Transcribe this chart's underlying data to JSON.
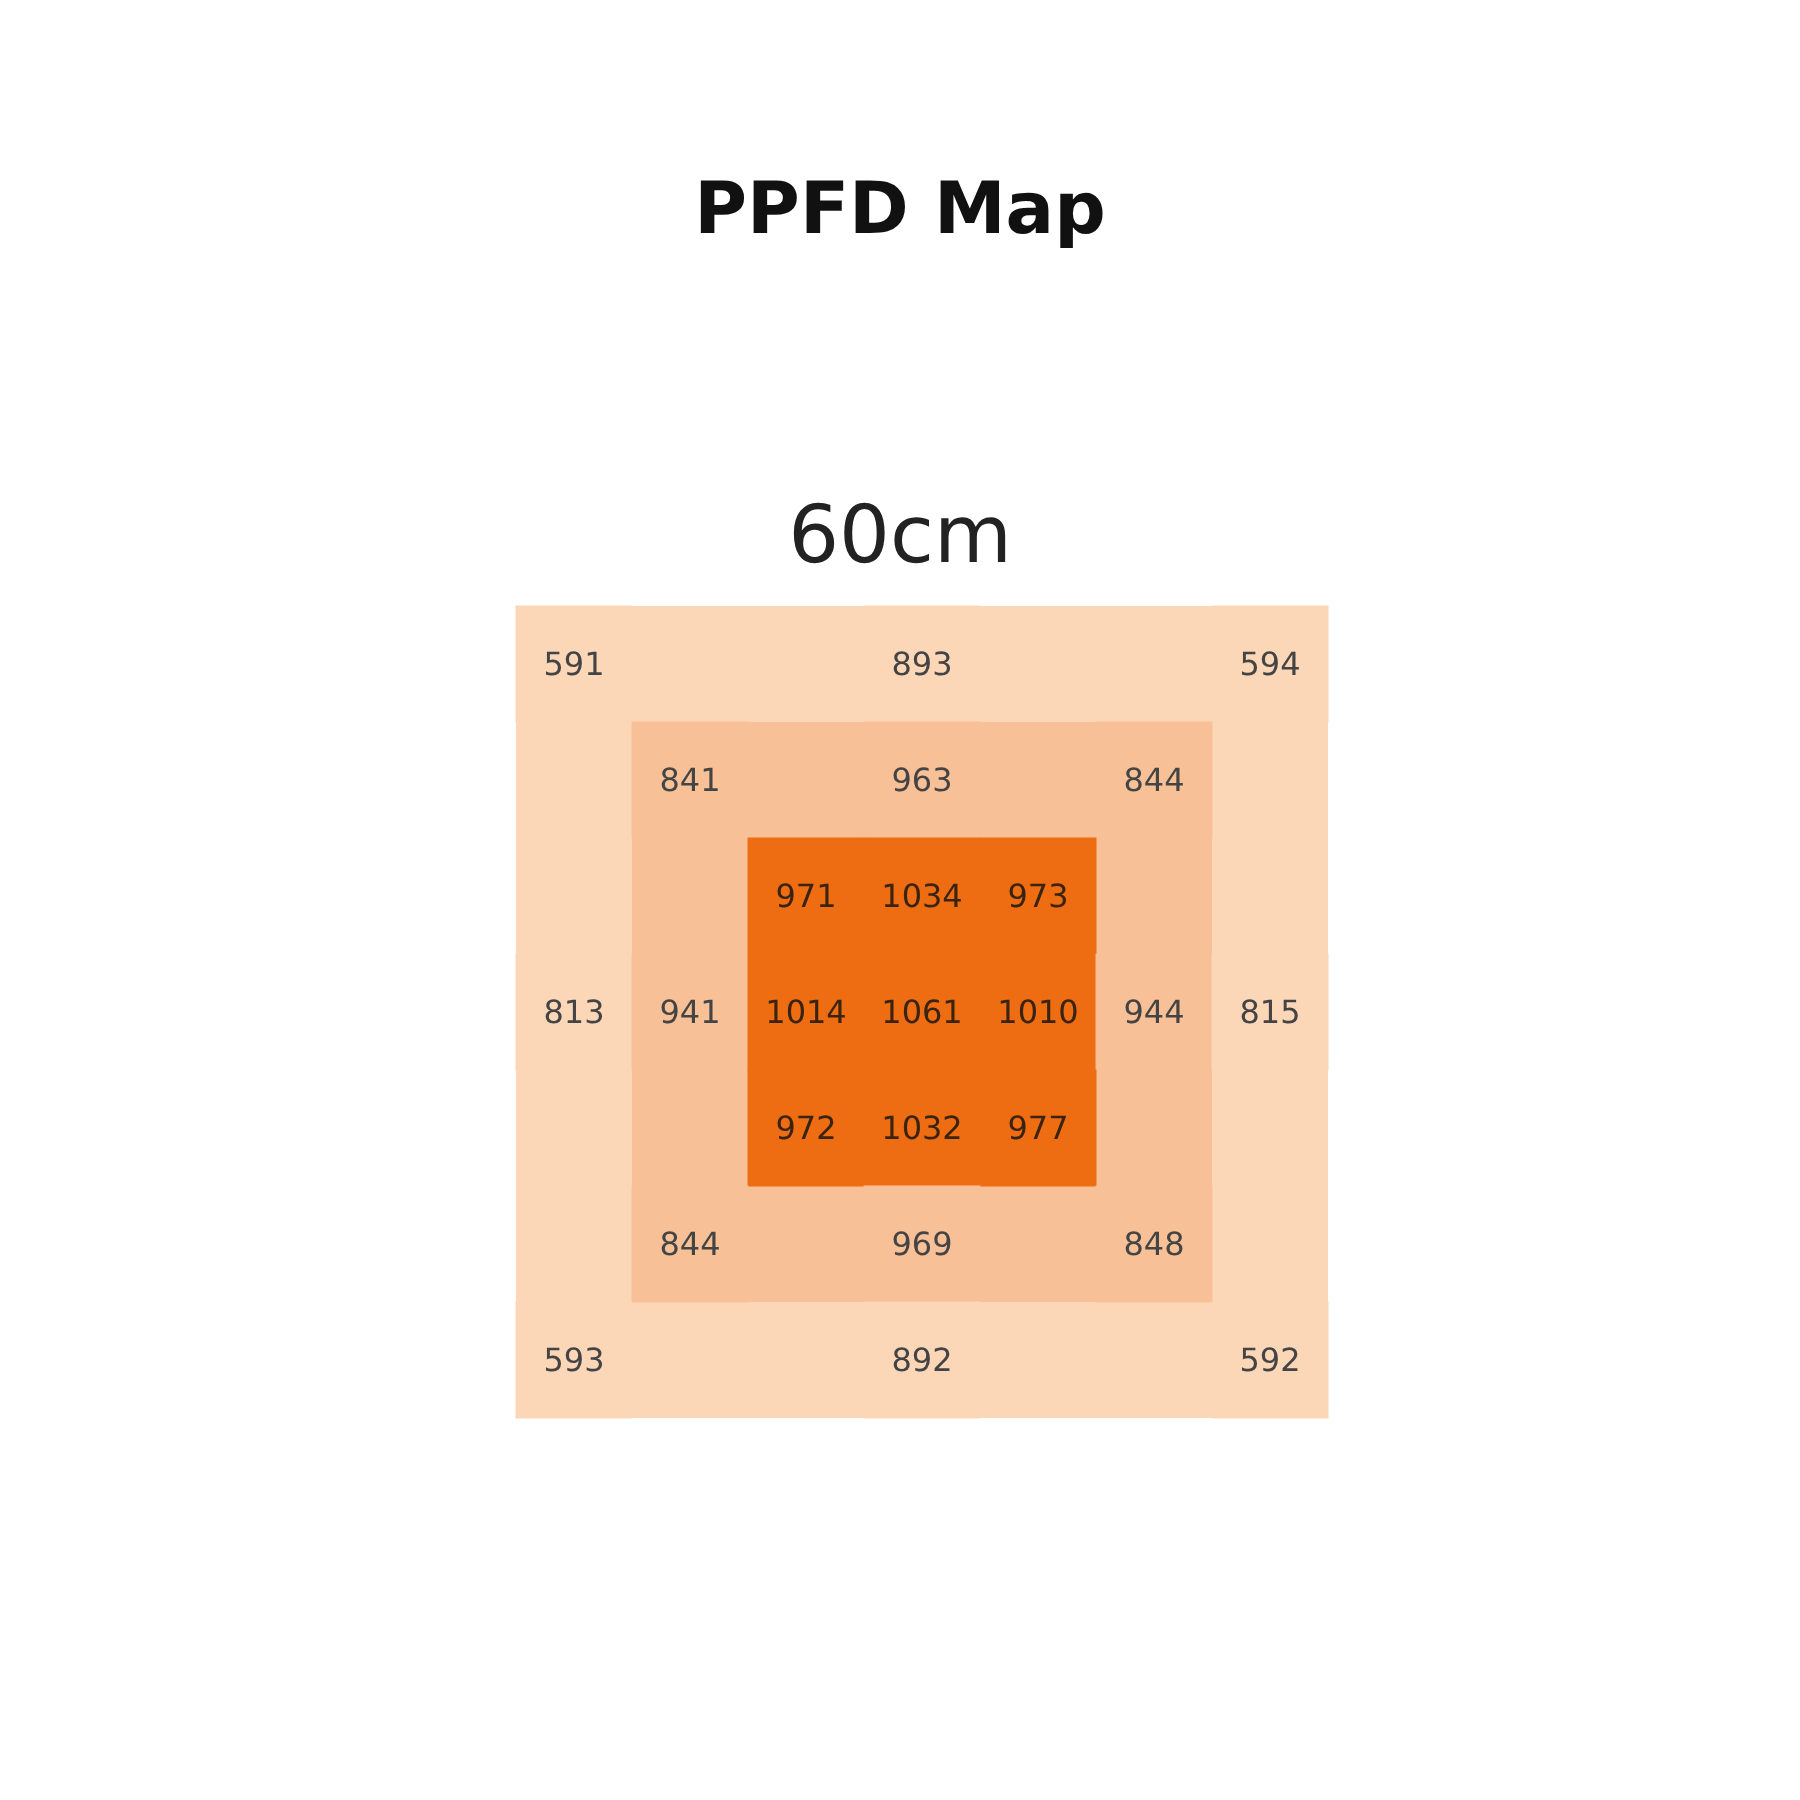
{
  "chart_data": {
    "type": "other",
    "title": "PPFD Map",
    "annotations": [
      "60cm"
    ],
    "data_labels": true,
    "values": [
      591,
      893,
      594,
      841,
      963,
      844,
      971,
      1034,
      973,
      813,
      941,
      1014,
      1061,
      1010,
      944,
      815,
      972,
      1032,
      977,
      844,
      969,
      848,
      593,
      892,
      592
    ]
  }
}
